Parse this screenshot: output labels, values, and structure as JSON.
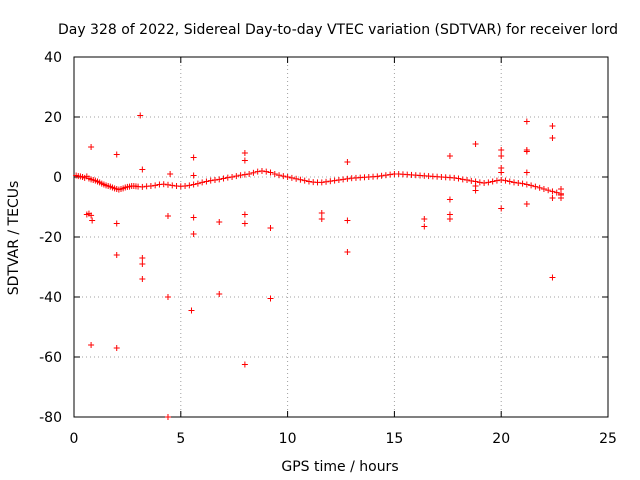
{
  "chart_data": {
    "type": "scatter",
    "title": "Day 328 of 2022, Sidereal Day-to-day VTEC variation (SDTVAR) for receiver lord",
    "xlabel": "GPS time / hours",
    "ylabel": "SDTVAR / TECUs",
    "xlim": [
      0,
      25
    ],
    "ylim": [
      -80,
      40
    ],
    "xticks": [
      0,
      5,
      10,
      15,
      20,
      25
    ],
    "yticks": [
      -80,
      -60,
      -40,
      -20,
      0,
      20,
      40
    ],
    "grid": true,
    "marker": "+",
    "color": "#ff0000",
    "series": [
      {
        "name": "SDTVAR",
        "points": [
          [
            0.1,
            0.5
          ],
          [
            0.2,
            0.3
          ],
          [
            0.3,
            0.2
          ],
          [
            0.4,
            0.0
          ],
          [
            0.5,
            -0.3
          ],
          [
            0.6,
            0.2
          ],
          [
            0.7,
            -0.5
          ],
          [
            0.8,
            -0.8
          ],
          [
            0.9,
            -1.0
          ],
          [
            1.0,
            -1.2
          ],
          [
            1.1,
            -1.5
          ],
          [
            1.2,
            -1.8
          ],
          [
            1.3,
            -2.2
          ],
          [
            1.4,
            -2.5
          ],
          [
            1.5,
            -2.8
          ],
          [
            1.6,
            -3.0
          ],
          [
            1.7,
            -3.2
          ],
          [
            1.8,
            -3.5
          ],
          [
            1.9,
            -3.8
          ],
          [
            2.0,
            -4.0
          ],
          [
            2.1,
            -4.2
          ],
          [
            2.2,
            -4.0
          ],
          [
            2.3,
            -3.8
          ],
          [
            2.4,
            -3.5
          ],
          [
            2.5,
            -3.3
          ],
          [
            2.6,
            -3.2
          ],
          [
            2.7,
            -3.0
          ],
          [
            2.8,
            -3.0
          ],
          [
            2.9,
            -3.1
          ],
          [
            3.0,
            -3.2
          ],
          [
            3.2,
            -3.3
          ],
          [
            3.4,
            -3.1
          ],
          [
            3.6,
            -3.0
          ],
          [
            3.8,
            -2.8
          ],
          [
            4.0,
            -2.5
          ],
          [
            4.2,
            -2.4
          ],
          [
            4.4,
            -2.6
          ],
          [
            4.6,
            -2.8
          ],
          [
            4.8,
            -3.0
          ],
          [
            5.0,
            -3.1
          ],
          [
            5.2,
            -3.0
          ],
          [
            5.4,
            -2.8
          ],
          [
            5.6,
            -2.5
          ],
          [
            5.8,
            -2.2
          ],
          [
            6.0,
            -1.8
          ],
          [
            6.2,
            -1.5
          ],
          [
            6.4,
            -1.2
          ],
          [
            6.6,
            -1.0
          ],
          [
            6.8,
            -0.8
          ],
          [
            7.0,
            -0.5
          ],
          [
            7.2,
            -0.2
          ],
          [
            7.4,
            0.0
          ],
          [
            7.6,
            0.3
          ],
          [
            7.8,
            0.6
          ],
          [
            8.0,
            0.8
          ],
          [
            8.2,
            1.0
          ],
          [
            8.4,
            1.4
          ],
          [
            8.6,
            1.8
          ],
          [
            8.8,
            2.0
          ],
          [
            9.0,
            1.8
          ],
          [
            9.2,
            1.5
          ],
          [
            9.4,
            1.0
          ],
          [
            9.6,
            0.6
          ],
          [
            9.8,
            0.3
          ],
          [
            10.0,
            0.0
          ],
          [
            10.2,
            -0.3
          ],
          [
            10.4,
            -0.6
          ],
          [
            10.6,
            -0.9
          ],
          [
            10.8,
            -1.2
          ],
          [
            11.0,
            -1.5
          ],
          [
            11.2,
            -1.7
          ],
          [
            11.4,
            -1.8
          ],
          [
            11.6,
            -1.8
          ],
          [
            11.8,
            -1.6
          ],
          [
            12.0,
            -1.4
          ],
          [
            12.2,
            -1.2
          ],
          [
            12.4,
            -1.0
          ],
          [
            12.6,
            -0.8
          ],
          [
            12.8,
            -0.6
          ],
          [
            13.0,
            -0.4
          ],
          [
            13.2,
            -0.3
          ],
          [
            13.4,
            -0.2
          ],
          [
            13.6,
            -0.1
          ],
          [
            13.8,
            0.0
          ],
          [
            14.0,
            0.1
          ],
          [
            14.2,
            0.2
          ],
          [
            14.4,
            0.4
          ],
          [
            14.6,
            0.6
          ],
          [
            14.8,
            0.8
          ],
          [
            15.0,
            1.0
          ],
          [
            15.2,
            1.0
          ],
          [
            15.4,
            0.9
          ],
          [
            15.6,
            0.8
          ],
          [
            15.8,
            0.7
          ],
          [
            16.0,
            0.6
          ],
          [
            16.2,
            0.5
          ],
          [
            16.4,
            0.4
          ],
          [
            16.6,
            0.3
          ],
          [
            16.8,
            0.2
          ],
          [
            17.0,
            0.1
          ],
          [
            17.2,
            0.0
          ],
          [
            17.4,
            -0.1
          ],
          [
            17.6,
            -0.2
          ],
          [
            17.8,
            -0.3
          ],
          [
            18.0,
            -0.5
          ],
          [
            18.2,
            -0.8
          ],
          [
            18.4,
            -1.0
          ],
          [
            18.6,
            -1.3
          ],
          [
            18.8,
            -1.5
          ],
          [
            19.0,
            -1.8
          ],
          [
            19.2,
            -2.0
          ],
          [
            19.4,
            -1.8
          ],
          [
            19.6,
            -1.5
          ],
          [
            19.8,
            -1.2
          ],
          [
            20.0,
            -1.0
          ],
          [
            20.2,
            -1.2
          ],
          [
            20.4,
            -1.5
          ],
          [
            20.6,
            -1.8
          ],
          [
            20.8,
            -2.0
          ],
          [
            21.0,
            -2.2
          ],
          [
            21.2,
            -2.5
          ],
          [
            21.4,
            -2.8
          ],
          [
            21.6,
            -3.2
          ],
          [
            21.8,
            -3.6
          ],
          [
            22.0,
            -4.0
          ],
          [
            22.2,
            -4.4
          ],
          [
            22.4,
            -4.8
          ],
          [
            22.6,
            -5.2
          ],
          [
            22.8,
            -5.6
          ],
          [
            0.6,
            -12.5
          ],
          [
            0.7,
            -12.2
          ],
          [
            0.8,
            -12.8
          ],
          [
            0.8,
            10.0
          ],
          [
            0.85,
            -14.5
          ],
          [
            0.8,
            -56.0
          ],
          [
            2.0,
            7.5
          ],
          [
            2.0,
            -15.5
          ],
          [
            2.0,
            -26.0
          ],
          [
            2.0,
            -57.0
          ],
          [
            3.1,
            20.5
          ],
          [
            3.2,
            2.5
          ],
          [
            3.2,
            -27.0
          ],
          [
            3.2,
            -29.0
          ],
          [
            3.2,
            -34.0
          ],
          [
            4.5,
            1.0
          ],
          [
            4.4,
            -13.0
          ],
          [
            4.4,
            -40.0
          ],
          [
            4.4,
            -80.0
          ],
          [
            5.6,
            6.5
          ],
          [
            5.6,
            0.5
          ],
          [
            5.6,
            -13.5
          ],
          [
            5.6,
            -19.0
          ],
          [
            5.5,
            -44.5
          ],
          [
            6.8,
            -15.0
          ],
          [
            6.8,
            -39.0
          ],
          [
            8.0,
            8.0
          ],
          [
            8.0,
            5.5
          ],
          [
            8.0,
            -12.5
          ],
          [
            8.0,
            -15.5
          ],
          [
            8.0,
            -62.5
          ],
          [
            9.2,
            -17.0
          ],
          [
            9.2,
            -40.5
          ],
          [
            11.6,
            -12.0
          ],
          [
            11.6,
            -14.0
          ],
          [
            12.8,
            5.0
          ],
          [
            12.8,
            -14.5
          ],
          [
            12.8,
            -25.0
          ],
          [
            16.4,
            -14.0
          ],
          [
            16.4,
            -16.5
          ],
          [
            17.6,
            7.0
          ],
          [
            17.6,
            -7.5
          ],
          [
            17.6,
            -12.5
          ],
          [
            17.6,
            -14.0
          ],
          [
            18.8,
            11.0
          ],
          [
            18.8,
            -3.0
          ],
          [
            18.8,
            -4.5
          ],
          [
            20.0,
            9.0
          ],
          [
            20.0,
            7.0
          ],
          [
            20.0,
            3.0
          ],
          [
            20.0,
            1.5
          ],
          [
            20.0,
            -10.5
          ],
          [
            21.2,
            18.5
          ],
          [
            21.2,
            9.0
          ],
          [
            21.2,
            8.5
          ],
          [
            21.2,
            1.5
          ],
          [
            21.2,
            -9.0
          ],
          [
            22.4,
            17.0
          ],
          [
            22.4,
            13.0
          ],
          [
            22.4,
            -7.0
          ],
          [
            22.4,
            -33.5
          ],
          [
            22.8,
            -4.0
          ],
          [
            22.8,
            -6.0
          ],
          [
            22.8,
            -7.0
          ]
        ]
      }
    ]
  }
}
